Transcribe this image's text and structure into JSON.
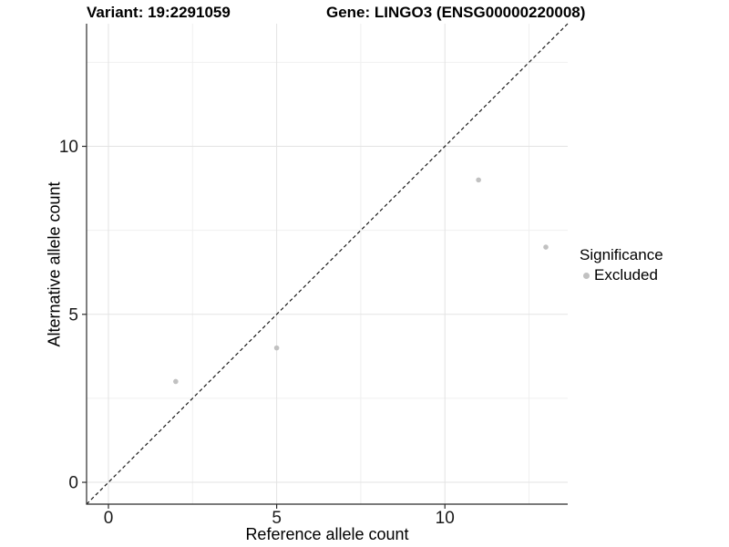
{
  "titles": {
    "variant": "Variant: 19:2291059",
    "gene": "Gene: LINGO3 (ENSG00000220008)"
  },
  "chart_data": {
    "type": "scatter",
    "points": [
      {
        "x": 2,
        "y": 3
      },
      {
        "x": 5,
        "y": 4
      },
      {
        "x": 11,
        "y": 9
      },
      {
        "x": 13,
        "y": 7
      }
    ],
    "point_color": "#c1c1c1",
    "point_radius": 2.8,
    "xlabel": "Reference allele count",
    "ylabel": "Alternative allele count",
    "x_ticks": [
      0,
      5,
      10
    ],
    "y_ticks": [
      0,
      5,
      10
    ],
    "x_minor_ticks": [
      2.5,
      7.5,
      12.5
    ],
    "y_minor_ticks": [
      2.5,
      7.5,
      12.5
    ],
    "xlim": [
      -0.65,
      13.65
    ],
    "ylim": [
      -0.65,
      13.65
    ],
    "grid": {
      "major_color": "#e3e3e3",
      "minor_color": "#f0f0f0"
    },
    "axis_color": "#2b2b2b",
    "tick_label_color": "#1a1a1a",
    "identity_line": {
      "style": "dashed",
      "slope": 1,
      "intercept": 0,
      "color": "#1a1a1a"
    },
    "legend": {
      "title": "Significance",
      "position": "right",
      "entries": [
        {
          "label": "Excluded",
          "color": "#c1c1c1"
        }
      ]
    }
  }
}
